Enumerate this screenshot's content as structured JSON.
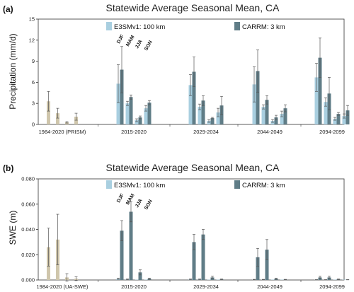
{
  "colors": {
    "prism_fill": "#cfc6ac",
    "e3sm_fill": "#a9cfe0",
    "carrm_fill": "#607d87",
    "error_bar": "#555555",
    "axis": "#333333"
  },
  "chart_data": [
    {
      "type": "bar",
      "panel_label": "(a)",
      "title": "Statewide Average Seasonal Mean, CA",
      "ylabel": "Precipitation (mm/d)",
      "ylim": [
        0,
        15
      ],
      "yticks": [
        "0",
        "3",
        "6",
        "9",
        "12",
        "15"
      ],
      "ytick_values": [
        0,
        3,
        6,
        9,
        12,
        15
      ],
      "legend": [
        {
          "label": "E3SMv1: 100 km",
          "color": "#a9cfe0"
        },
        {
          "label": "CARRM: 3 km",
          "color": "#607d87"
        }
      ],
      "legend_placement": "top-center",
      "seasons": [
        "DJF",
        "MAM",
        "JJA",
        "SON"
      ],
      "categories": [
        "1984-2020 (PRISM)",
        "2015-2020",
        "2029-2034",
        "2044-2049",
        "2094-2099"
      ],
      "observed": {
        "values": [
          3.3,
          1.6,
          0.3,
          1.1
        ],
        "errors": [
          1.4,
          0.7,
          0.1,
          0.5
        ]
      },
      "series": [
        {
          "name": "E3SMv1: 100 km",
          "values": [
            [
              5.8,
              3.0,
              0.6,
              2.3
            ],
            [
              5.6,
              2.5,
              0.5,
              1.7
            ],
            [
              5.7,
              2.5,
              0.5,
              1.5
            ],
            [
              6.7,
              3.2,
              0.8,
              1.2
            ]
          ],
          "errors": [
            [
              2.7,
              0.3,
              0.2,
              0.4
            ],
            [
              1.5,
              0.4,
              0.2,
              0.6
            ],
            [
              2.5,
              0.3,
              0.2,
              0.4
            ],
            [
              2.0,
              0.6,
              0.2,
              0.3
            ]
          ]
        },
        {
          "name": "CARRM: 3 km",
          "values": [
            [
              7.8,
              3.9,
              1.0,
              3.1
            ],
            [
              7.5,
              3.4,
              0.9,
              2.7
            ],
            [
              7.6,
              3.5,
              1.0,
              2.3
            ],
            [
              9.5,
              4.4,
              1.5,
              2.0
            ]
          ],
          "errors": [
            [
              3.3,
              0.3,
              0.2,
              0.3
            ],
            [
              2.1,
              0.7,
              0.1,
              1.3
            ],
            [
              3.0,
              0.6,
              0.3,
              0.5
            ],
            [
              2.8,
              2.3,
              0.2,
              0.7
            ]
          ]
        }
      ]
    },
    {
      "type": "bar",
      "panel_label": "(b)",
      "title": "Statewide Average Seasonal Mean, CA",
      "ylabel": "SWE (m)",
      "ylim": [
        0,
        0.08
      ],
      "yticks": [
        "0.000",
        "0.020",
        "0.040",
        "0.060",
        "0.080"
      ],
      "ytick_values": [
        0,
        0.02,
        0.04,
        0.06,
        0.08
      ],
      "legend": [
        {
          "label": "E3SMv1: 100 km",
          "color": "#a9cfe0"
        },
        {
          "label": "CARRM: 3 km",
          "color": "#607d87"
        }
      ],
      "legend_placement": "top-center",
      "seasons": [
        "DJF",
        "MAM",
        "JJA",
        "SON"
      ],
      "categories": [
        "1984-2020 (UA-SWE)",
        "2015-2020",
        "2029-2034",
        "2044-2049",
        "2094-2099"
      ],
      "observed": {
        "values": [
          0.026,
          0.032,
          0.002,
          0.001
        ],
        "errors": [
          0.015,
          0.02,
          0.003,
          0.0015
        ]
      },
      "series": [
        {
          "name": "E3SMv1: 100 km",
          "values": [
            [
              0.001,
              0.0005,
              0.0,
              0.0
            ],
            [
              0.0005,
              0.0005,
              0.0,
              0.0
            ],
            [
              0.0003,
              0.0003,
              0.0,
              0.0
            ],
            [
              0.0002,
              0.0002,
              0.0,
              0.0
            ]
          ],
          "errors": [
            [
              0.0005,
              0.0003,
              0.0,
              0.0
            ],
            [
              0.0003,
              0.0003,
              0.0,
              0.0
            ],
            [
              0.0002,
              0.0002,
              0.0,
              0.0
            ],
            [
              0.0001,
              0.0001,
              0.0,
              0.0
            ]
          ]
        },
        {
          "name": "CARRM: 3 km",
          "values": [
            [
              0.039,
              0.054,
              0.006,
              0.001
            ],
            [
              0.03,
              0.036,
              0.002,
              0.0005
            ],
            [
              0.018,
              0.024,
              0.001,
              0.0003
            ],
            [
              0.002,
              0.002,
              0.0005,
              0.0002
            ]
          ],
          "errors": [
            [
              0.008,
              0.008,
              0.002,
              0.0005
            ],
            [
              0.006,
              0.004,
              0.001,
              0.0003
            ],
            [
              0.007,
              0.008,
              0.0005,
              0.0002
            ],
            [
              0.001,
              0.001,
              0.0003,
              0.0001
            ]
          ]
        }
      ]
    }
  ]
}
